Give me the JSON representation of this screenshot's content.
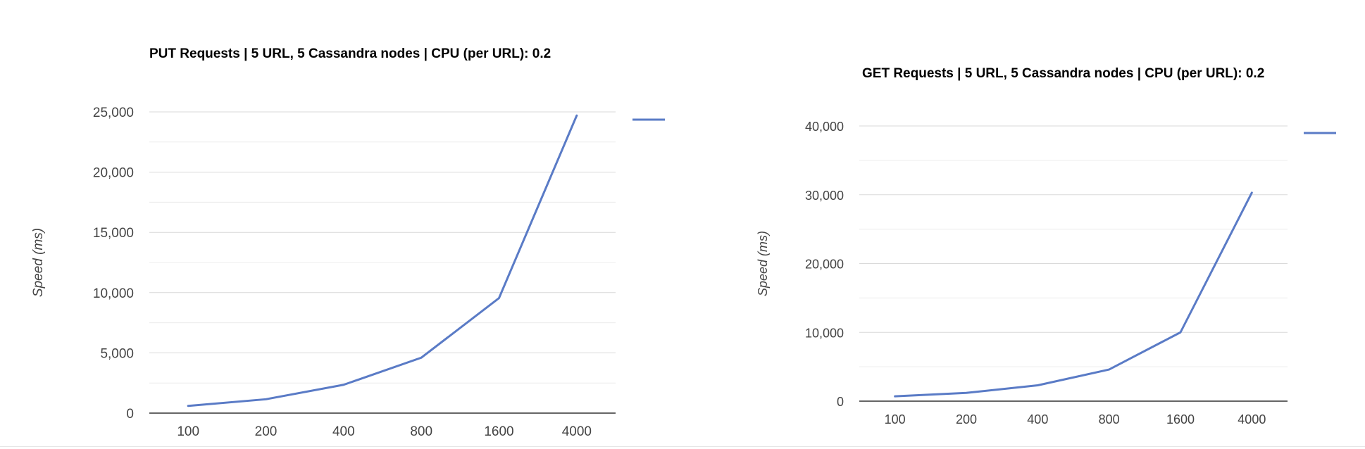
{
  "colors": {
    "series": "#5a7bc6",
    "gridline": "#d9d9d9",
    "minor_gridline": "#ececec",
    "axis": "#333333",
    "label": "#444444"
  },
  "chart_data": [
    {
      "type": "line",
      "title": "PUT Requests | 5 URL, 5 Cassandra nodes | CPU (per URL): 0.2",
      "xlabel": "",
      "ylabel": "Speed (ms)",
      "categories": [
        "100",
        "200",
        "400",
        "800",
        "1600",
        "4000"
      ],
      "series": [
        {
          "values": [
            600,
            1150,
            2350,
            4600,
            9550,
            24700
          ]
        }
      ],
      "ylim": [
        0,
        25000
      ],
      "yticks": [
        0,
        5000,
        10000,
        15000,
        20000,
        25000
      ],
      "ytick_labels": [
        "0",
        "5,000",
        "10,000",
        "15,000",
        "20,000",
        "25,000"
      ],
      "grid": true,
      "legend": "right"
    },
    {
      "type": "line",
      "title": "GET Requests | 5 URL, 5 Cassandra nodes | CPU (per URL): 0.2",
      "xlabel": "",
      "ylabel": "Speed (ms)",
      "categories": [
        "100",
        "200",
        "400",
        "800",
        "1600",
        "4000"
      ],
      "series": [
        {
          "values": [
            700,
            1200,
            2300,
            4600,
            10000,
            30300
          ]
        }
      ],
      "ylim": [
        0,
        40000
      ],
      "yticks": [
        0,
        10000,
        20000,
        30000,
        40000
      ],
      "ytick_labels": [
        "0",
        "10,000",
        "20,000",
        "30,000",
        "40,000"
      ],
      "grid": true,
      "legend": "right"
    }
  ]
}
